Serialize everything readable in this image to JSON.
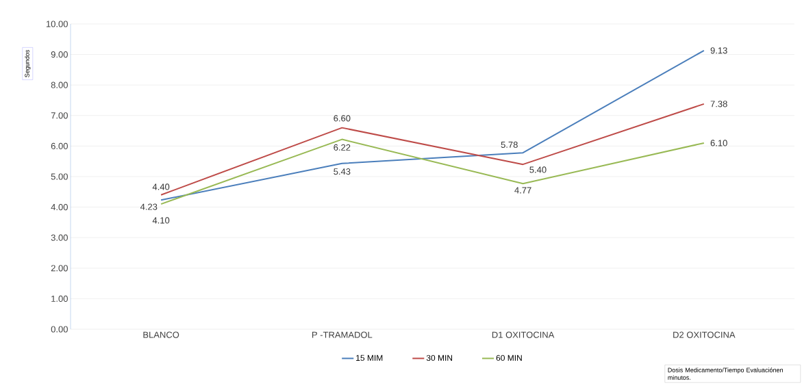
{
  "chart_data": {
    "type": "line",
    "ylabel": "Segundos",
    "categories": [
      "BLANCO",
      "P -TRAMADOL",
      "D1 OXITOCINA",
      "D2 OXITOCINA"
    ],
    "series": [
      {
        "name": "15 MIM",
        "color": "#4a7ebb",
        "values": [
          4.23,
          5.43,
          5.78,
          9.13
        ],
        "value_labels": [
          "4.23",
          "5.43",
          "5.78",
          "9.13"
        ]
      },
      {
        "name": "30 MIN",
        "color": "#be4b48",
        "values": [
          4.4,
          6.6,
          5.4,
          7.38
        ],
        "value_labels": [
          "4.40",
          "6.60",
          "5.40",
          "7.38"
        ]
      },
      {
        "name": "60 MIN",
        "color": "#98b954",
        "values": [
          4.1,
          6.22,
          4.77,
          6.1
        ],
        "value_labels": [
          "4.10",
          "6.22",
          "4.77",
          "6.10"
        ]
      }
    ],
    "ylim": [
      0,
      10
    ],
    "yticks": [
      {
        "value": 0,
        "label": "0.00"
      },
      {
        "value": 1,
        "label": "1.00"
      },
      {
        "value": 2,
        "label": "2.00"
      },
      {
        "value": 3,
        "label": "3.00"
      },
      {
        "value": 4,
        "label": "4.00"
      },
      {
        "value": 5,
        "label": "5.00"
      },
      {
        "value": 6,
        "label": "6.00"
      },
      {
        "value": 7,
        "label": "7.00"
      },
      {
        "value": 8,
        "label": "8.00"
      },
      {
        "value": 9,
        "label": "9.00"
      },
      {
        "value": 10,
        "label": "10.00"
      }
    ],
    "grid": "y",
    "legend": "bottom",
    "marker": "none",
    "line_style": "solid",
    "annotations": [
      "Dosis Medicamento/Tiempo Evaluaciónen minutos."
    ]
  }
}
